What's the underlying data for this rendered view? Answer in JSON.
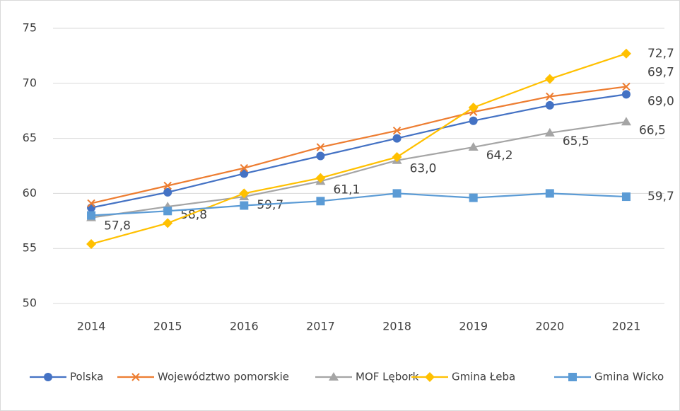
{
  "chart_data": {
    "type": "line",
    "categories": [
      "2014",
      "2015",
      "2016",
      "2017",
      "2018",
      "2019",
      "2020",
      "2021"
    ],
    "ylim": [
      50,
      75
    ],
    "yticks": [
      50,
      55,
      60,
      65,
      70,
      75
    ],
    "grid": true,
    "legend": "bottom",
    "series": [
      {
        "name": "Polska",
        "color": "#4472c4",
        "marker": "circle",
        "values": [
          58.7,
          60.1,
          61.8,
          63.4,
          65.0,
          66.6,
          68.0,
          69.0
        ],
        "value_labels": [
          null,
          null,
          null,
          null,
          null,
          null,
          null,
          "69,0"
        ]
      },
      {
        "name": "Województwo pomorskie",
        "color": "#ed7d31",
        "marker": "x",
        "values": [
          59.1,
          60.7,
          62.3,
          64.2,
          65.7,
          67.4,
          68.8,
          69.7
        ],
        "value_labels": [
          null,
          null,
          null,
          null,
          null,
          null,
          null,
          "69,7"
        ]
      },
      {
        "name": "MOF Lębork",
        "color": "#a5a5a5",
        "marker": "triangle",
        "values": [
          57.8,
          58.8,
          59.7,
          61.1,
          63.0,
          64.2,
          65.5,
          66.5
        ],
        "value_labels": [
          "57,8",
          "58,8",
          "59,7",
          "61,1",
          "63,0",
          "64,2",
          "65,5",
          "66,5"
        ]
      },
      {
        "name": "Gmina Łeba",
        "color": "#ffc000",
        "marker": "diamond",
        "values": [
          55.4,
          57.3,
          60.0,
          61.4,
          63.3,
          67.8,
          70.4,
          72.7
        ],
        "value_labels": [
          null,
          null,
          null,
          null,
          null,
          null,
          null,
          "72,7"
        ]
      },
      {
        "name": "Gmina Wicko",
        "color": "#5b9bd5",
        "marker": "square",
        "values": [
          58.0,
          58.4,
          58.9,
          59.3,
          60.0,
          59.6,
          60.0,
          59.7
        ],
        "value_labels": [
          null,
          null,
          null,
          null,
          null,
          null,
          null,
          "59,7"
        ]
      }
    ]
  }
}
